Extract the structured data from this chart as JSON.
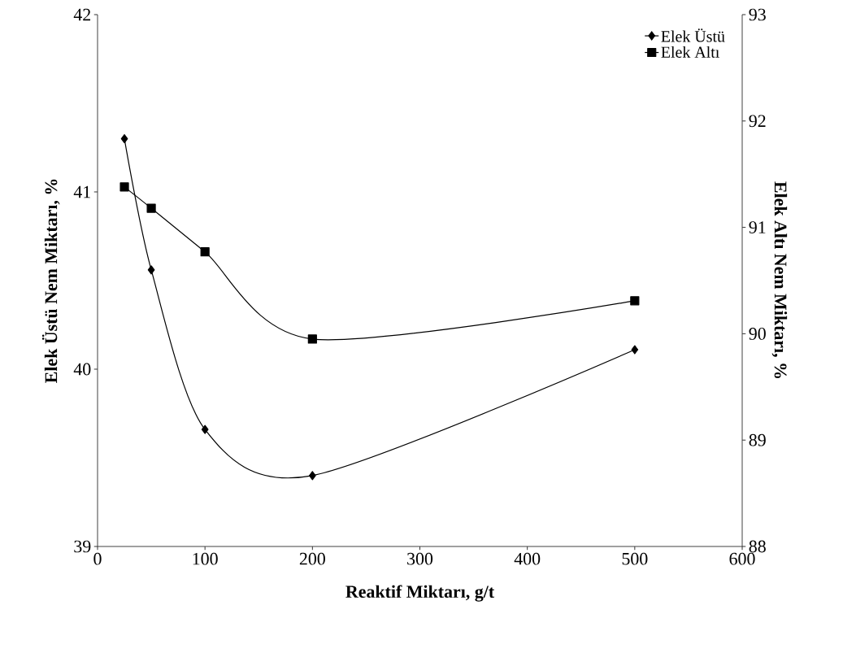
{
  "chart_data": {
    "type": "line",
    "xlabel": "Reaktif Miktarı, g/t",
    "ylabel": "Elek Üstü Nem Miktarı, %",
    "y2label": "Elek Altı Nem Miktarı, %",
    "x": [
      25,
      50,
      100,
      200,
      500
    ],
    "series": [
      {
        "name": "Elek Üstü",
        "color": "#000000",
        "marker": "diamond",
        "values": [
          41.3,
          40.56,
          39.66,
          39.4,
          40.11
        ]
      },
      {
        "name": "Elek Altı",
        "color": "#000000",
        "marker": "square",
        "axis": "y2",
        "values": [
          91.38,
          91.18,
          90.77,
          89.95,
          90.31
        ]
      }
    ],
    "xlim": [
      0,
      600
    ],
    "xticks": [
      0,
      100,
      200,
      300,
      400,
      500,
      600
    ],
    "ylim": [
      39,
      42
    ],
    "yticks": [
      39,
      40,
      41,
      42
    ],
    "y2lim": [
      88,
      93
    ],
    "y2ticks": [
      88,
      89,
      90,
      91,
      92,
      93
    ],
    "legend": "top right",
    "grid": false,
    "line_style": "solid"
  }
}
